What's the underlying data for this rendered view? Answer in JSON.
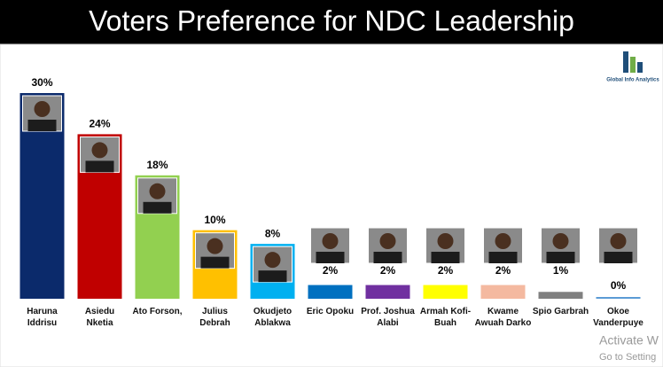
{
  "chart_data": {
    "type": "bar",
    "title": "Voters Preference for NDC Leadership",
    "logo": "Global Info Analytics",
    "watermark": [
      "Activate W",
      "Go to Setting"
    ],
    "categories": [
      "Haruna Iddrisu",
      "Asiedu Nketia",
      "Ato Forson,",
      "Julius Debrah",
      "Okudjeto Ablakwa",
      "Eric Opoku",
      "Prof. Joshua Alabi",
      "Armah Kofi-Buah",
      "Kwame Awuah Darko",
      "Spio Garbrah",
      "Okoe Vanderpuye"
    ],
    "values": [
      30,
      24,
      18,
      10,
      8,
      2,
      2,
      2,
      2,
      1,
      0
    ],
    "value_labels": [
      "30%",
      "24%",
      "18%",
      "10%",
      "8%",
      "2%",
      "2%",
      "2%",
      "2%",
      "1%",
      "0%"
    ],
    "colors": [
      "#0b2a6b",
      "#c00000",
      "#92d050",
      "#ffc000",
      "#00b0f0",
      "#0070c0",
      "#7030a0",
      "#ffff00",
      "#f4b9a0",
      "#808080",
      "#5b9bd5"
    ],
    "ylim": [
      0,
      30
    ]
  }
}
